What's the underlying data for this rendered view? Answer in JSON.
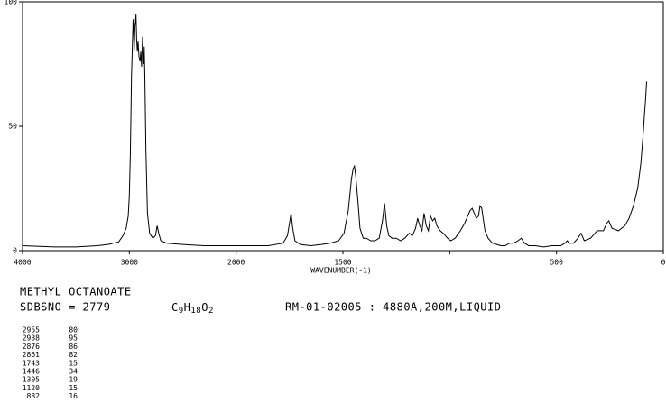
{
  "chart_data": {
    "type": "line",
    "x_label": "WAVENUMBER(-1)",
    "xlim": [
      4000,
      0
    ],
    "xticks": [
      4000,
      3000,
      2000,
      1500,
      {
        "value": 1000,
        "label": null
      },
      500,
      0
    ],
    "ylim": [
      0,
      100
    ],
    "yticks": [
      0,
      50,
      100
    ],
    "color": "#000000",
    "x": [
      4000,
      3700,
      3500,
      3300,
      3200,
      3100,
      3060,
      3030,
      3010,
      3000,
      2990,
      2980,
      2970,
      2965,
      2960,
      2955,
      2948,
      2942,
      2938,
      2932,
      2925,
      2918,
      2910,
      2900,
      2893,
      2885,
      2876,
      2870,
      2865,
      2861,
      2855,
      2845,
      2830,
      2810,
      2780,
      2755,
      2740,
      2725,
      2705,
      2650,
      2500,
      2300,
      2100,
      2000,
      1850,
      1780,
      1760,
      1750,
      1743,
      1735,
      1725,
      1700,
      1650,
      1600,
      1560,
      1520,
      1495,
      1475,
      1460,
      1452,
      1446,
      1440,
      1430,
      1420,
      1405,
      1390,
      1370,
      1350,
      1330,
      1315,
      1305,
      1295,
      1285,
      1270,
      1250,
      1230,
      1210,
      1190,
      1175,
      1160,
      1150,
      1140,
      1130,
      1120,
      1110,
      1100,
      1090,
      1080,
      1070,
      1060,
      1045,
      1030,
      1010,
      995,
      975,
      950,
      930,
      915,
      905,
      895,
      885,
      875,
      865,
      858,
      850,
      845,
      835,
      820,
      800,
      780,
      760,
      740,
      720,
      700,
      680,
      665,
      650,
      630,
      600,
      560,
      520,
      500,
      480,
      460,
      450,
      440,
      420,
      400,
      385,
      370,
      340,
      310,
      280,
      265,
      255,
      240,
      210,
      180,
      160,
      140,
      120,
      105,
      95,
      88,
      82,
      78
    ],
    "y": [
      2,
      1.5,
      1.5,
      2,
      2.5,
      3.5,
      6,
      9,
      14,
      22,
      40,
      70,
      85,
      93,
      88,
      80,
      90,
      92,
      95,
      85,
      80,
      84,
      78,
      76,
      80,
      74,
      86,
      78,
      75,
      82,
      70,
      40,
      15,
      7,
      5,
      6,
      10,
      7,
      4,
      3,
      2.5,
      2,
      2,
      2,
      2,
      3,
      6,
      11,
      15,
      9,
      4,
      2.5,
      2,
      2.5,
      3,
      4,
      7,
      16,
      29,
      33,
      34,
      30,
      20,
      9,
      5,
      5,
      4,
      4,
      5,
      12,
      19,
      10,
      6,
      5,
      5,
      4,
      5,
      7,
      6,
      9,
      13,
      10,
      8,
      15,
      10,
      8,
      14,
      12,
      13,
      10,
      8,
      7,
      5,
      4,
      5,
      8,
      11,
      14,
      16,
      17,
      15,
      13,
      14,
      18,
      17,
      14,
      8,
      5,
      3,
      2.5,
      2,
      2,
      3,
      3,
      4,
      5,
      3,
      2,
      2,
      1.5,
      2,
      2,
      2,
      3,
      4,
      3,
      3,
      5,
      7,
      4,
      5,
      8,
      8,
      11,
      12,
      9,
      8,
      10,
      13,
      18,
      25,
      35,
      46,
      55,
      62,
      68
    ],
    "title": "METHYL OCTANOATE",
    "sdbs_no": "SDBSNO = 2779",
    "formula": [
      "C",
      "9",
      "H",
      "18",
      "O",
      "2"
    ],
    "conditions": "RM-01-02005 : 4880A,200M,LIQUID",
    "peaks": [
      [
        "2955",
        "80"
      ],
      [
        "2938",
        "95"
      ],
      [
        "2876",
        "86"
      ],
      [
        "2861",
        "82"
      ],
      [
        "1743",
        "15"
      ],
      [
        "1446",
        "34"
      ],
      [
        "1305",
        "19"
      ],
      [
        "1120",
        "15"
      ],
      [
        "882",
        "16"
      ]
    ]
  }
}
